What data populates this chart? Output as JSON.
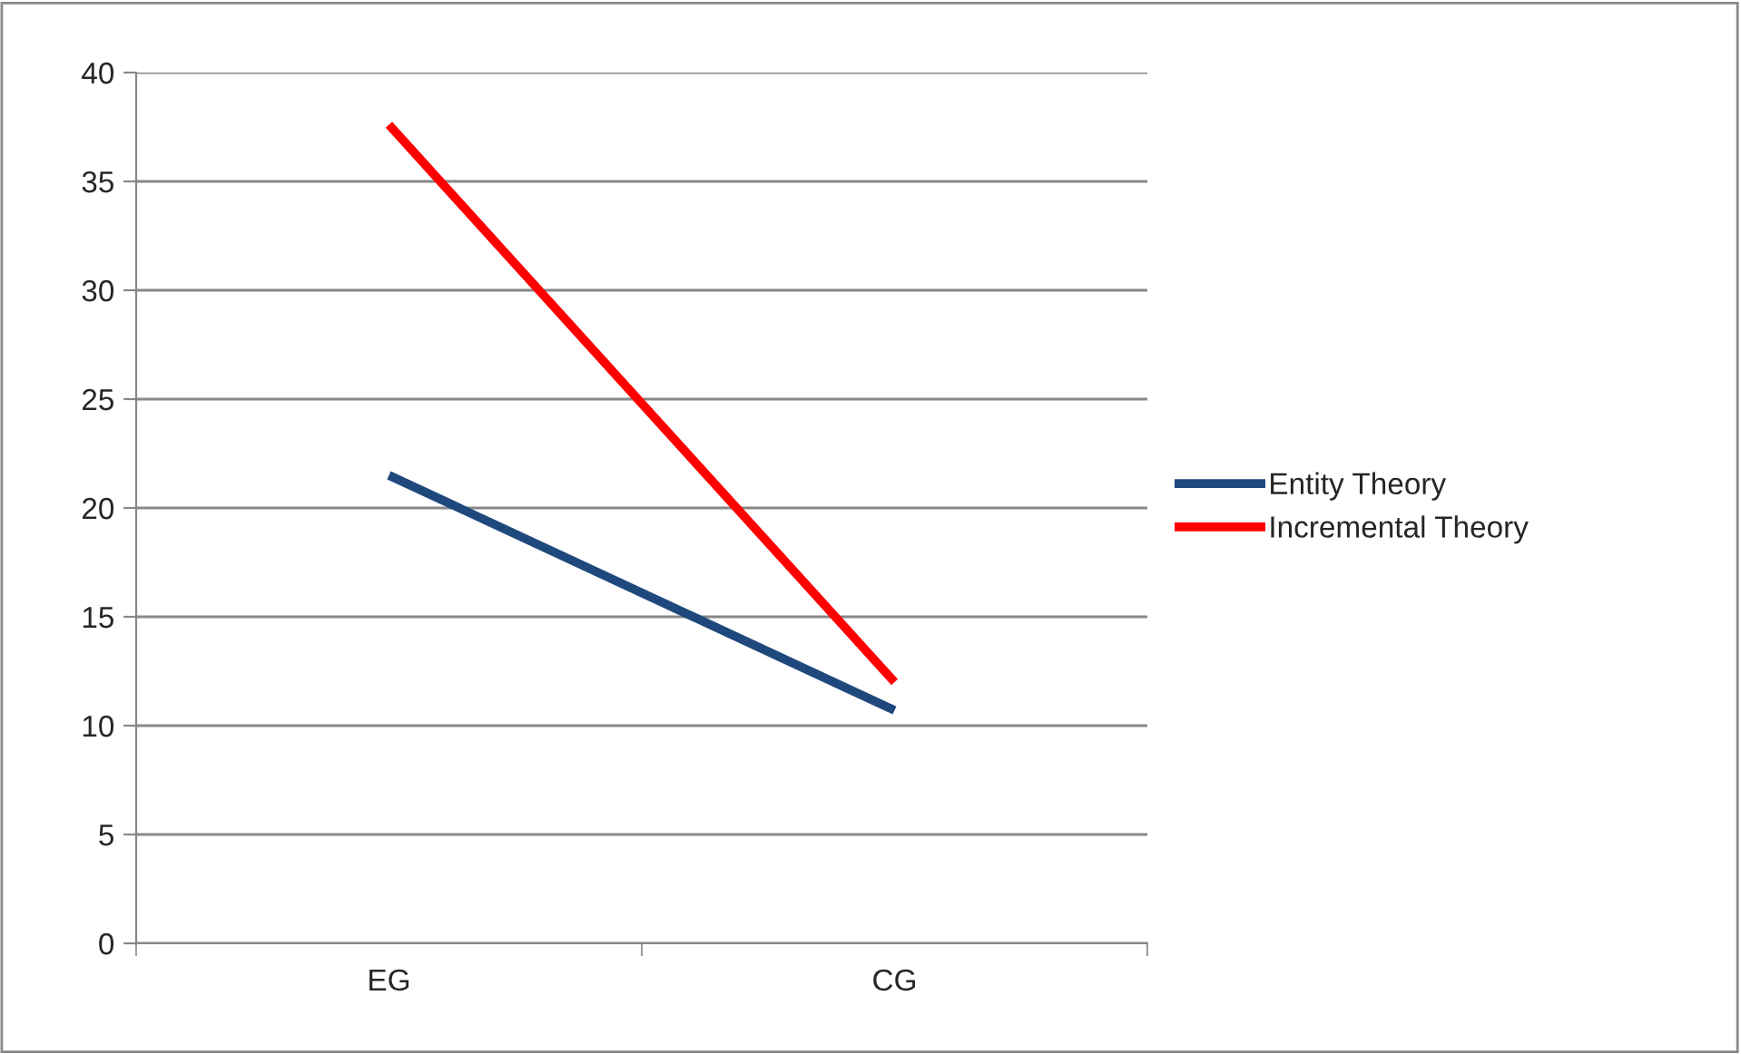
{
  "chart_data": {
    "type": "line",
    "categories": [
      "EG",
      "CG"
    ],
    "series": [
      {
        "name": "Entity Theory",
        "color": "#1f497d",
        "values": [
          21.5,
          10.7
        ]
      },
      {
        "name": "Incremental Theory",
        "color": "#ff0000",
        "values": [
          37.6,
          12.0
        ]
      }
    ],
    "ylim": [
      0,
      40
    ],
    "yticks": [
      0,
      5,
      10,
      15,
      20,
      25,
      30,
      35,
      40
    ],
    "grid": "y",
    "legend": "right",
    "marker": "none",
    "line_style": "solid"
  }
}
